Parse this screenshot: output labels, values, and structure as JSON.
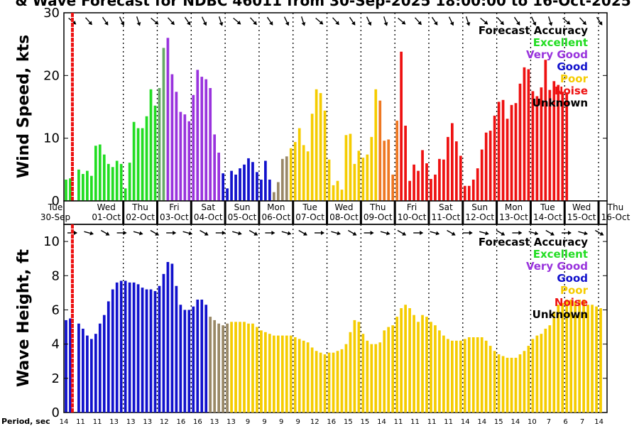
{
  "chart_data": {
    "type": "bar",
    "title": "& Wave Forecast for NDBC 46011 from 30-Sep-2025 18:00:00 to 16-Oct-2025",
    "days": [
      {
        "name": "Tue",
        "date": "30-Sep"
      },
      {
        "name": "Wed",
        "date": "01-Oct"
      },
      {
        "name": "Thu",
        "date": "02-Oct"
      },
      {
        "name": "Fri",
        "date": "03-Oct"
      },
      {
        "name": "Sat",
        "date": "04-Oct"
      },
      {
        "name": "Sun",
        "date": "05-Oct"
      },
      {
        "name": "Mon",
        "date": "06-Oct"
      },
      {
        "name": "Tue",
        "date": "07-Oct"
      },
      {
        "name": "Wed",
        "date": "08-Oct"
      },
      {
        "name": "Thu",
        "date": "09-Oct"
      },
      {
        "name": "Fri",
        "date": "10-Oct"
      },
      {
        "name": "Sat",
        "date": "11-Oct"
      },
      {
        "name": "Sun",
        "date": "12-Oct"
      },
      {
        "name": "Mon",
        "date": "13-Oct"
      },
      {
        "name": "Tue",
        "date": "14-Oct"
      },
      {
        "name": "Wed",
        "date": "15-Oct"
      },
      {
        "name": "Thu",
        "date": "16-Oct"
      }
    ],
    "x_range_days": [
      0,
      16.0
    ],
    "bars_per_day": 8,
    "legend": {
      "title": "Forecast Accuracy",
      "entries": [
        {
          "label": "Excellent",
          "color": "#22dd22"
        },
        {
          "label": "Very Good",
          "color": "#9933dd"
        },
        {
          "label": "Good",
          "color": "#1111cc"
        },
        {
          "label": "Poor",
          "color": "#f5cc00"
        },
        {
          "label": "Noise",
          "color": "#ee1111"
        },
        {
          "label": "Unknown",
          "color": "#000000"
        }
      ]
    },
    "panels": [
      {
        "id": "wind",
        "ylabel": "Wind Speed, kts",
        "ylim": [
          0,
          30
        ],
        "yticks": [
          0,
          10,
          20,
          30
        ],
        "values": [
          3.4,
          3.6,
          0,
          5.0,
          4.3,
          4.8,
          4.0,
          8.8,
          9.0,
          7.4,
          5.9,
          5.4,
          6.4,
          5.9,
          2.0,
          6.1,
          12.6,
          11.6,
          11.6,
          13.5,
          17.8,
          15.2,
          18.0,
          24.4,
          26.0,
          20.2,
          17.4,
          14.2,
          13.8,
          12.7,
          16.9,
          20.9,
          19.8,
          19.4,
          18.0,
          10.6,
          7.7,
          4.4,
          2.0,
          4.8,
          4.2,
          5.2,
          5.8,
          6.8,
          6.2,
          4.6,
          3.4,
          6.4,
          3.4,
          1.4,
          3.0,
          6.7,
          7.1,
          8.4,
          9.4,
          11.6,
          8.9,
          7.9,
          13.9,
          17.8,
          17.2,
          14.4,
          6.6,
          2.5,
          3.2,
          1.8,
          10.5,
          10.7,
          5.9,
          8.0,
          6.9,
          7.4,
          10.2,
          17.8,
          16.0,
          9.6,
          9.8,
          4.2,
          12.8,
          23.8,
          12.0,
          3.2,
          5.8,
          4.8,
          8.1,
          6.0,
          3.5,
          4.2,
          6.7,
          6.6,
          10.2,
          12.4,
          9.5,
          7.2,
          2.4,
          2.4,
          3.4,
          5.2,
          8.2,
          10.9,
          11.2,
          13.6,
          15.8,
          16.1,
          13.1,
          15.3,
          15.6,
          18.7,
          21.3,
          21.0,
          17.5,
          16.7,
          18.1,
          22.5,
          17.7,
          19.1,
          18.5,
          17.4,
          17.3
        ],
        "categories_by_bar": "see colors",
        "colors": [
          "g",
          "g",
          "g",
          "g",
          "g",
          "g",
          "g",
          "g",
          "g",
          "g",
          "g",
          "g",
          "g",
          "g",
          "g",
          "g",
          "g",
          "g",
          "g",
          "g",
          "g",
          "g",
          "gv",
          "gv",
          "v",
          "v",
          "v",
          "v",
          "v",
          "v",
          "v",
          "v",
          "v",
          "v",
          "v",
          "v",
          "v",
          "b",
          "b",
          "b",
          "b",
          "b",
          "b",
          "b",
          "b",
          "b",
          "b",
          "b",
          "b",
          "t",
          "t",
          "t",
          "t",
          "y",
          "y",
          "y",
          "y",
          "y",
          "y",
          "y",
          "y",
          "y",
          "y",
          "y",
          "y",
          "y",
          "y",
          "y",
          "y",
          "y",
          "y",
          "y",
          "y",
          "y",
          "o",
          "o",
          "o",
          "o",
          "o",
          "r",
          "r",
          "r",
          "r",
          "r",
          "r",
          "r",
          "r",
          "r",
          "r",
          "r",
          "r",
          "r",
          "r",
          "r",
          "r",
          "r",
          "r",
          "r",
          "r",
          "r",
          "r",
          "r",
          "r",
          "r",
          "r",
          "r",
          "r",
          "r",
          "r",
          "r",
          "r",
          "r",
          "r",
          "r",
          "r",
          "r",
          "r",
          "r",
          "r",
          "r"
        ]
      },
      {
        "id": "wave",
        "ylabel": "Wave Height, ft",
        "ylim": [
          0,
          11
        ],
        "yticks": [
          0,
          2,
          4,
          6,
          8,
          10
        ],
        "values": [
          5.4,
          5.5,
          0,
          5.2,
          4.9,
          4.5,
          4.3,
          4.6,
          5.2,
          5.7,
          6.5,
          7.2,
          7.6,
          7.7,
          7.7,
          7.6,
          7.6,
          7.5,
          7.3,
          7.2,
          7.2,
          7.1,
          7.4,
          8.1,
          8.8,
          8.7,
          7.4,
          6.3,
          6.0,
          6.0,
          6.2,
          6.6,
          6.6,
          6.3,
          5.6,
          5.4,
          5.2,
          5.1,
          5.2,
          5.3,
          5.3,
          5.3,
          5.3,
          5.2,
          5.2,
          5.0,
          4.8,
          4.7,
          4.6,
          4.5,
          4.5,
          4.5,
          4.5,
          4.5,
          4.4,
          4.3,
          4.2,
          4.1,
          3.8,
          3.6,
          3.5,
          3.4,
          3.5,
          3.5,
          3.6,
          3.7,
          4.0,
          4.7,
          5.4,
          5.3,
          4.6,
          4.2,
          4.0,
          4.0,
          4.1,
          4.8,
          5.0,
          5.1,
          5.6,
          6.1,
          6.3,
          6.1,
          5.7,
          5.3,
          5.7,
          5.6,
          5.3,
          5.1,
          4.8,
          4.5,
          4.3,
          4.2,
          4.2,
          4.2,
          4.3,
          4.4,
          4.4,
          4.4,
          4.4,
          4.2,
          3.9,
          3.6,
          3.4,
          3.3,
          3.2,
          3.2,
          3.2,
          3.4,
          3.6,
          3.9,
          4.3,
          4.5,
          4.6,
          4.9,
          5.1,
          5.9,
          6.3,
          6.4,
          6.6,
          6.6,
          6.5,
          6.6,
          6.6,
          6.3,
          6.3,
          6.2,
          6.1
        ],
        "colors": [
          "b",
          "b",
          "b",
          "b",
          "b",
          "b",
          "b",
          "b",
          "b",
          "b",
          "b",
          "b",
          "b",
          "b",
          "b",
          "b",
          "b",
          "b",
          "b",
          "b",
          "b",
          "b",
          "b",
          "b",
          "b",
          "b",
          "b",
          "b",
          "b",
          "b",
          "b",
          "b",
          "b",
          "b",
          "t",
          "t",
          "t",
          "t",
          "t",
          "y",
          "y",
          "y",
          "y",
          "y",
          "y",
          "y",
          "y",
          "y",
          "y",
          "y",
          "y",
          "y",
          "y",
          "y",
          "y",
          "y",
          "y",
          "y",
          "y",
          "y",
          "y",
          "y",
          "y",
          "y",
          "y",
          "y",
          "y",
          "y",
          "y",
          "y",
          "y",
          "y",
          "y",
          "y",
          "y",
          "y",
          "y",
          "y",
          "y",
          "y",
          "y",
          "y",
          "y",
          "y",
          "y",
          "y",
          "y",
          "y",
          "y",
          "y",
          "y",
          "y",
          "y",
          "y",
          "y",
          "y",
          "y",
          "y",
          "y",
          "y",
          "y",
          "y",
          "y",
          "y",
          "y",
          "y",
          "y",
          "y",
          "y",
          "y",
          "y",
          "y",
          "y",
          "y",
          "y",
          "y",
          "y",
          "y",
          "y",
          "y",
          "y",
          "y",
          "y",
          "y",
          "y",
          "y",
          "y"
        ]
      }
    ],
    "color_key": {
      "g": "#22dd22",
      "gv": "#66aa66",
      "v": "#9933dd",
      "b": "#1111cc",
      "t": "#998866",
      "y": "#f5cc00",
      "o": "#ee7722",
      "r": "#ee1111"
    },
    "now_marker_day": 0.25,
    "period_label": "Period, sec",
    "periods": [
      "14",
      "11",
      "11",
      "13",
      "13",
      "13",
      "12",
      "16",
      "16",
      "13",
      "13",
      "9",
      "9",
      "9",
      "9",
      "12",
      "16",
      "15",
      "15",
      "14",
      "11",
      "11",
      "11",
      "11",
      "14",
      "14",
      "15",
      "14",
      "10",
      "7",
      "6",
      "7",
      "14"
    ]
  }
}
